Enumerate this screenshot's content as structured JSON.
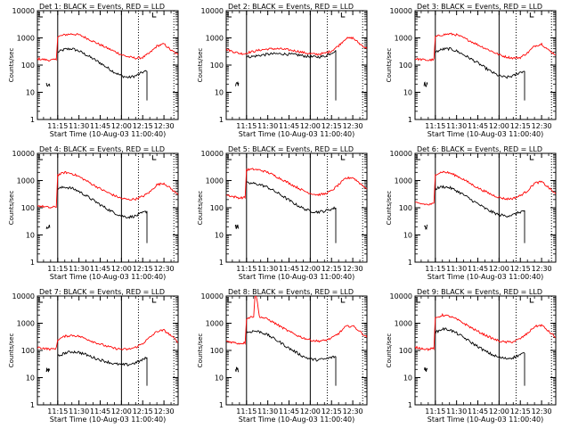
{
  "figure": {
    "xlabel": "Start Time (10-Aug-03 11:00:40)",
    "ylabel": "Counts/sec",
    "x_tick_labels": [
      "11:15",
      "11:30",
      "11:45",
      "12:00",
      "12:15",
      "12:30"
    ],
    "y_tick_labels": [
      "1",
      "10",
      "100",
      "1000",
      "10000"
    ]
  },
  "chart_data": [
    {
      "type": "line",
      "title": "Det 1: BLACK = Events, RED = LLD",
      "xlabel": "Start Time (10-Aug-03 11:00:40)",
      "ylabel": "Counts/sec",
      "y_scale": "log",
      "ylim": [
        1,
        10000
      ],
      "x_range": [
        "11:00:40",
        "12:40"
      ],
      "series": [
        {
          "name": "Events",
          "color": "#000000",
          "x": [
            "11:05",
            "11:07",
            "11:10",
            "11:12",
            "11:15",
            "11:20",
            "11:25",
            "11:30",
            "11:35",
            "11:40",
            "11:45",
            "11:50",
            "11:55",
            "12:00",
            "12:05",
            "12:10",
            "12:15",
            "12:18"
          ],
          "y": [
            null,
            null,
            null,
            null,
            300,
            380,
            400,
            330,
            240,
            170,
            120,
            80,
            55,
            40,
            35,
            40,
            55,
            60
          ]
        },
        {
          "name": "LLD",
          "color": "#ff0000",
          "x": [
            "11:00:40",
            "11:05",
            "11:10",
            "11:14",
            "11:15",
            "11:20",
            "11:25",
            "11:30",
            "11:35",
            "11:40",
            "11:45",
            "11:50",
            "11:55",
            "12:00",
            "12:05",
            "12:10",
            "12:15",
            "12:20",
            "12:25",
            "12:30",
            "12:35",
            "12:40"
          ],
          "y": [
            170,
            160,
            150,
            160,
            1100,
            1300,
            1400,
            1300,
            1000,
            750,
            560,
            420,
            320,
            240,
            200,
            180,
            190,
            280,
            500,
            600,
            350,
            240
          ]
        }
      ]
    },
    {
      "type": "line",
      "title": "Det 2: BLACK = Events, RED = LLD",
      "xlabel": "Start Time (10-Aug-03 11:00:40)",
      "ylabel": "Counts/sec",
      "y_scale": "log",
      "ylim": [
        1,
        10000
      ],
      "x_range": [
        "11:00:40",
        "12:40"
      ],
      "series": [
        {
          "name": "Events",
          "color": "#000000",
          "x": [
            "11:15",
            "11:20",
            "11:25",
            "11:30",
            "11:35",
            "11:40",
            "11:45",
            "11:50",
            "11:55",
            "12:00",
            "12:05",
            "12:10",
            "12:15",
            "12:18"
          ],
          "y": [
            200,
            210,
            230,
            250,
            260,
            260,
            250,
            240,
            220,
            200,
            200,
            210,
            280,
            350
          ]
        },
        {
          "name": "LLD",
          "color": "#ff0000",
          "x": [
            "11:00:40",
            "11:05",
            "11:10",
            "11:14",
            "11:15",
            "11:20",
            "11:25",
            "11:30",
            "11:35",
            "11:40",
            "11:45",
            "11:50",
            "11:55",
            "12:00",
            "12:05",
            "12:10",
            "12:15",
            "12:20",
            "12:25",
            "12:30",
            "12:35",
            "12:40"
          ],
          "y": [
            380,
            320,
            270,
            260,
            280,
            320,
            360,
            390,
            400,
            390,
            360,
            330,
            290,
            260,
            250,
            270,
            330,
            520,
            950,
            1000,
            600,
            400
          ]
        }
      ]
    },
    {
      "type": "line",
      "title": "Det 3: BLACK = Events, RED = LLD",
      "xlabel": "Start Time (10-Aug-03 11:00:40)",
      "ylabel": "Counts/sec",
      "y_scale": "log",
      "ylim": [
        1,
        10000
      ],
      "x_range": [
        "11:00:40",
        "12:40"
      ],
      "series": [
        {
          "name": "Events",
          "color": "#000000",
          "x": [
            "11:15",
            "11:20",
            "11:25",
            "11:30",
            "11:35",
            "11:40",
            "11:45",
            "11:50",
            "11:55",
            "12:00",
            "12:05",
            "12:10",
            "12:15",
            "12:18"
          ],
          "y": [
            300,
            380,
            400,
            330,
            240,
            170,
            120,
            80,
            55,
            40,
            35,
            40,
            55,
            60
          ]
        },
        {
          "name": "LLD",
          "color": "#ff0000",
          "x": [
            "11:00:40",
            "11:05",
            "11:10",
            "11:14",
            "11:15",
            "11:20",
            "11:25",
            "11:30",
            "11:35",
            "11:40",
            "11:45",
            "11:50",
            "11:55",
            "12:00",
            "12:05",
            "12:10",
            "12:15",
            "12:20",
            "12:25",
            "12:30",
            "12:35",
            "12:40"
          ],
          "y": [
            170,
            160,
            150,
            160,
            1100,
            1300,
            1400,
            1300,
            1000,
            750,
            560,
            420,
            320,
            240,
            200,
            180,
            190,
            280,
            500,
            600,
            350,
            240
          ]
        }
      ]
    },
    {
      "type": "line",
      "title": "Det 4: BLACK = Events, RED = LLD",
      "xlabel": "Start Time (10-Aug-03 11:00:40)",
      "ylabel": "Counts/sec",
      "y_scale": "log",
      "ylim": [
        1,
        10000
      ],
      "x_range": [
        "11:00:40",
        "12:40"
      ],
      "series": [
        {
          "name": "Events",
          "color": "#000000",
          "x": [
            "11:15",
            "11:20",
            "11:25",
            "11:30",
            "11:35",
            "11:40",
            "11:45",
            "11:50",
            "11:55",
            "12:00",
            "12:05",
            "12:10",
            "12:15",
            "12:18"
          ],
          "y": [
            500,
            580,
            520,
            400,
            280,
            190,
            130,
            90,
            65,
            50,
            45,
            50,
            65,
            75
          ]
        },
        {
          "name": "LLD",
          "color": "#ff0000",
          "x": [
            "11:00:40",
            "11:05",
            "11:10",
            "11:14",
            "11:15",
            "11:20",
            "11:25",
            "11:30",
            "11:35",
            "11:40",
            "11:45",
            "11:50",
            "11:55",
            "12:00",
            "12:05",
            "12:10",
            "12:15",
            "12:20",
            "12:25",
            "12:30",
            "12:35",
            "12:40"
          ],
          "y": [
            120,
            110,
            100,
            110,
            1600,
            2000,
            1800,
            1400,
            1000,
            700,
            500,
            370,
            280,
            220,
            200,
            210,
            260,
            380,
            700,
            800,
            500,
            300
          ]
        }
      ]
    },
    {
      "type": "line",
      "title": "Det 5: BLACK = Events, RED = LLD",
      "xlabel": "Start Time (10-Aug-03 11:00:40)",
      "ylabel": "Counts/sec",
      "y_scale": "log",
      "ylim": [
        1,
        10000
      ],
      "x_range": [
        "11:00:40",
        "12:40"
      ],
      "series": [
        {
          "name": "Events",
          "color": "#000000",
          "x": [
            "11:15",
            "11:20",
            "11:25",
            "11:30",
            "11:35",
            "11:40",
            "11:45",
            "11:50",
            "11:55",
            "12:00",
            "12:05",
            "12:10",
            "12:15",
            "12:18"
          ],
          "y": [
            800,
            780,
            700,
            560,
            400,
            280,
            190,
            130,
            95,
            75,
            70,
            75,
            90,
            100
          ]
        },
        {
          "name": "LLD",
          "color": "#ff0000",
          "x": [
            "11:00:40",
            "11:05",
            "11:10",
            "11:14",
            "11:15",
            "11:20",
            "11:25",
            "11:30",
            "11:35",
            "11:40",
            "11:45",
            "11:50",
            "11:55",
            "12:00",
            "12:05",
            "12:10",
            "12:15",
            "12:20",
            "12:25",
            "12:30",
            "12:35",
            "12:40"
          ],
          "y": [
            300,
            260,
            230,
            240,
            2500,
            2600,
            2400,
            2000,
            1500,
            1100,
            800,
            580,
            430,
            340,
            300,
            320,
            420,
            700,
            1200,
            1300,
            800,
            500
          ]
        }
      ]
    },
    {
      "type": "line",
      "title": "Det 6: BLACK = Events, RED = LLD",
      "xlabel": "Start Time (10-Aug-03 11:00:40)",
      "ylabel": "Counts/sec",
      "y_scale": "log",
      "ylim": [
        1,
        10000
      ],
      "x_range": [
        "11:00:40",
        "12:40"
      ],
      "series": [
        {
          "name": "Events",
          "color": "#000000",
          "x": [
            "11:15",
            "11:20",
            "11:25",
            "11:30",
            "11:35",
            "11:40",
            "11:45",
            "11:50",
            "11:55",
            "12:00",
            "12:05",
            "12:10",
            "12:15",
            "12:18"
          ],
          "y": [
            500,
            600,
            550,
            420,
            300,
            200,
            140,
            95,
            70,
            55,
            50,
            55,
            70,
            80
          ]
        },
        {
          "name": "LLD",
          "color": "#ff0000",
          "x": [
            "11:00:40",
            "11:05",
            "11:10",
            "11:14",
            "11:15",
            "11:20",
            "11:25",
            "11:30",
            "11:35",
            "11:40",
            "11:45",
            "11:50",
            "11:55",
            "12:00",
            "12:05",
            "12:10",
            "12:15",
            "12:20",
            "12:25",
            "12:30",
            "12:35",
            "12:40"
          ],
          "y": [
            150,
            140,
            130,
            140,
            1700,
            2100,
            1900,
            1500,
            1100,
            760,
            540,
            400,
            300,
            240,
            210,
            220,
            280,
            420,
            800,
            900,
            550,
            320
          ]
        }
      ]
    },
    {
      "type": "line",
      "title": "Det 7: BLACK = Events, RED = LLD",
      "xlabel": "Start Time (10-Aug-03 11:00:40)",
      "ylabel": "Counts/sec",
      "y_scale": "log",
      "ylim": [
        1,
        10000
      ],
      "x_range": [
        "11:00:40",
        "12:40"
      ],
      "series": [
        {
          "name": "Events",
          "color": "#000000",
          "x": [
            "11:15",
            "11:20",
            "11:25",
            "11:30",
            "11:35",
            "11:40",
            "11:45",
            "11:50",
            "11:55",
            "12:00",
            "12:05",
            "12:10",
            "12:15",
            "12:18"
          ],
          "y": [
            60,
            80,
            90,
            85,
            70,
            55,
            45,
            38,
            32,
            30,
            30,
            35,
            45,
            55
          ]
        },
        {
          "name": "LLD",
          "color": "#ff0000",
          "x": [
            "11:00:40",
            "11:05",
            "11:10",
            "11:14",
            "11:15",
            "11:20",
            "11:25",
            "11:30",
            "11:35",
            "11:40",
            "11:45",
            "11:50",
            "11:55",
            "12:00",
            "12:05",
            "12:10",
            "12:15",
            "12:20",
            "12:25",
            "12:30",
            "12:35",
            "12:40"
          ],
          "y": [
            130,
            120,
            110,
            120,
            250,
            330,
            360,
            330,
            270,
            210,
            170,
            140,
            120,
            110,
            110,
            130,
            180,
            300,
            500,
            550,
            350,
            200
          ]
        }
      ]
    },
    {
      "type": "line",
      "title": "Det 8: BLACK = Events, RED = LLD",
      "xlabel": "Start Time (10-Aug-03 11:00:40)",
      "ylabel": "Counts/sec",
      "y_scale": "log",
      "ylim": [
        1,
        10000
      ],
      "x_range": [
        "11:00:40",
        "12:40"
      ],
      "series": [
        {
          "name": "Events",
          "color": "#000000",
          "x": [
            "11:15",
            "11:20",
            "11:25",
            "11:30",
            "11:35",
            "11:40",
            "11:45",
            "11:50",
            "11:55",
            "12:00",
            "12:05",
            "12:10",
            "12:15",
            "12:18"
          ],
          "y": [
            450,
            520,
            480,
            370,
            260,
            180,
            120,
            85,
            60,
            48,
            45,
            48,
            55,
            60
          ]
        },
        {
          "name": "LLD",
          "color": "#ff0000",
          "x": [
            "11:00:40",
            "11:05",
            "11:10",
            "11:14",
            "11:15",
            "11:20",
            "11:21",
            "11:22",
            "11:24",
            "11:25",
            "11:30",
            "11:35",
            "11:40",
            "11:45",
            "11:50",
            "11:55",
            "12:00",
            "12:05",
            "12:10",
            "12:15",
            "12:20",
            "12:25",
            "12:30",
            "12:35",
            "12:40"
          ],
          "y": [
            220,
            200,
            180,
            190,
            1500,
            1800,
            10000,
            10000,
            1800,
            1700,
            1400,
            1000,
            700,
            500,
            370,
            290,
            240,
            220,
            230,
            280,
            420,
            750,
            800,
            500,
            300
          ]
        }
      ]
    },
    {
      "type": "line",
      "title": "Det 9: BLACK = Events, RED = LLD",
      "xlabel": "Start Time (10-Aug-03 11:00:40)",
      "ylabel": "Counts/sec",
      "y_scale": "log",
      "ylim": [
        1,
        10000
      ],
      "x_range": [
        "11:00:40",
        "12:40"
      ],
      "series": [
        {
          "name": "Events",
          "color": "#000000",
          "x": [
            "11:15",
            "11:20",
            "11:25",
            "11:30",
            "11:35",
            "11:40",
            "11:45",
            "11:50",
            "11:55",
            "12:00",
            "12:05",
            "12:10",
            "12:15",
            "12:18"
          ],
          "y": [
            450,
            620,
            580,
            430,
            300,
            200,
            140,
            95,
            70,
            55,
            50,
            55,
            70,
            80
          ]
        },
        {
          "name": "LLD",
          "color": "#ff0000",
          "x": [
            "11:00:40",
            "11:05",
            "11:10",
            "11:14",
            "11:15",
            "11:20",
            "11:25",
            "11:30",
            "11:35",
            "11:40",
            "11:45",
            "11:50",
            "11:55",
            "12:00",
            "12:05",
            "12:10",
            "12:15",
            "12:20",
            "12:25",
            "12:30",
            "12:35",
            "12:40"
          ],
          "y": [
            130,
            120,
            110,
            120,
            1500,
            2000,
            1800,
            1400,
            1000,
            700,
            500,
            370,
            280,
            220,
            200,
            210,
            270,
            420,
            750,
            850,
            500,
            300
          ]
        }
      ]
    }
  ]
}
